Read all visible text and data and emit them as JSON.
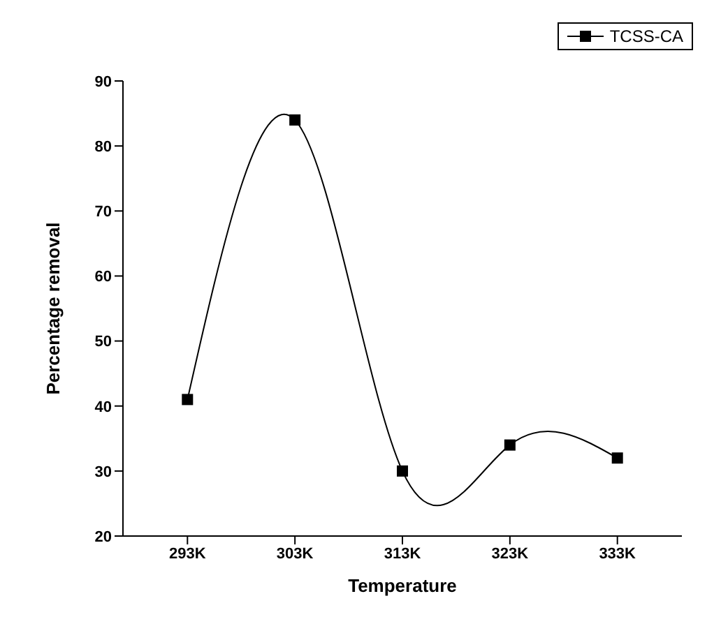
{
  "chart_data": {
    "type": "line",
    "xlabel": "Temperature",
    "ylabel": "Percentage removal",
    "categories": [
      "293K",
      "303K",
      "313K",
      "323K",
      "333K"
    ],
    "series": [
      {
        "name": "TCSS-CA",
        "color": "#000000",
        "values": [
          41,
          84,
          30,
          34,
          32
        ]
      }
    ],
    "ylim": [
      20,
      90
    ],
    "yticks": [
      20,
      30,
      40,
      50,
      60,
      70,
      80,
      90
    ],
    "grid": false,
    "legend": "top right",
    "marker": "square",
    "line_style": "solid"
  }
}
